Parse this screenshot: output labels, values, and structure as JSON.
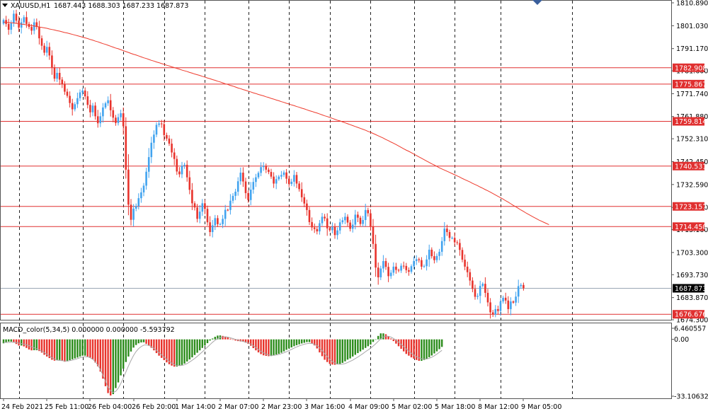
{
  "header": {
    "symbol": "XAUUSD,H1",
    "ohlc": "1687.443 1688.303 1687.233 1687.873"
  },
  "macd_header": "MACD_color(5,34,5) 0.000000 0.000000 -5.593792",
  "colors": {
    "bull": "#41a3ef",
    "bear": "#e8332c",
    "ma": "#ee3b2d",
    "hline": "#e03030",
    "macd_pos": "#2b8c1b",
    "macd_neg": "#e8332c",
    "signal": "#a8a8a8",
    "bid_line": "#9aa6b4",
    "bid_tag": "#000000",
    "hline_tag": "#e03030"
  },
  "chart_data": [
    {
      "type": "candlestick",
      "ylim": [
        1674.3,
        1810.89
      ],
      "y_ticks": [
        "1810.890",
        "1801.030",
        "1791.170",
        "1781.600",
        "1771.740",
        "1761.880",
        "1752.310",
        "1742.450",
        "1732.590",
        "1722.730",
        "1713.160",
        "1703.300",
        "1693.730",
        "1683.870",
        "1674.300"
      ],
      "x_labels": [
        "24 Feb 2021",
        "25 Feb 11:00",
        "26 Feb 04:00",
        "26 Feb 20:00",
        "1 Mar 14:00",
        "2 Mar 07:00",
        "2 Mar 23:00",
        "3 Mar 16:00",
        "4 Mar 09:00",
        "5 Mar 02:00",
        "5 Mar 18:00",
        "8 Mar 12:00",
        "9 Mar 05:00"
      ],
      "x_label_index": [
        0,
        17,
        34,
        51,
        68,
        85,
        102,
        119,
        136,
        153,
        170,
        187,
        204
      ],
      "vgrid_index": [
        6,
        31,
        47,
        63,
        79,
        96,
        112,
        128,
        144,
        161,
        177,
        195,
        223
      ],
      "closes": [
        1803.5,
        1801.8,
        1799.3,
        1802.1,
        1806.2,
        1803.2,
        1800.2,
        1802.5,
        1804.7,
        1801.8,
        1800.5,
        1798.9,
        1802.5,
        1800.5,
        1795.6,
        1792.4,
        1789.4,
        1791.9,
        1788.2,
        1783.1,
        1778.2,
        1780.7,
        1777.8,
        1775.8,
        1772.6,
        1770.8,
        1767.7,
        1765.0,
        1767.2,
        1769.8,
        1772.3,
        1773.1,
        1770.6,
        1766.9,
        1763.7,
        1766.6,
        1762.0,
        1759.0,
        1762.0,
        1765.8,
        1767.6,
        1768.9,
        1764.6,
        1761.4,
        1759.1,
        1761.6,
        1763.3,
        1757.7,
        1739.0,
        1723.9,
        1717.4,
        1722.2,
        1723.3,
        1726.7,
        1729.2,
        1732.1,
        1738.1,
        1744.4,
        1750.6,
        1754.1,
        1758.3,
        1758.9,
        1758.6,
        1753.9,
        1752.4,
        1750.2,
        1746.4,
        1743.6,
        1738.2,
        1737.0,
        1740.7,
        1741.1,
        1735.7,
        1730.3,
        1724.5,
        1722.7,
        1717.8,
        1720.9,
        1724.5,
        1722.1,
        1716.3,
        1712.1,
        1715.0,
        1718.1,
        1715.5,
        1715.5,
        1717.8,
        1721.7,
        1721.6,
        1725.6,
        1727.7,
        1729.5,
        1734.0,
        1737.7,
        1733.9,
        1728.9,
        1725.9,
        1730.4,
        1733.7,
        1735.7,
        1737.6,
        1740.1,
        1740.6,
        1739.0,
        1738.0,
        1736.0,
        1733.0,
        1734.9,
        1736.0,
        1736.7,
        1737.8,
        1735.1,
        1732.8,
        1733.8,
        1736.7,
        1733.0,
        1730.6,
        1727.1,
        1724.4,
        1721.6,
        1716.4,
        1714.1,
        1713.4,
        1712.4,
        1715.9,
        1718.7,
        1718.0,
        1713.7,
        1712.9,
        1714.3,
        1710.8,
        1712.8,
        1716.3,
        1717.2,
        1718.7,
        1716.2,
        1713.5,
        1715.3,
        1719.6,
        1718.3,
        1715.6,
        1717.3,
        1721.6,
        1720.2,
        1714.5,
        1707.0,
        1696.8,
        1692.6,
        1696.4,
        1699.6,
        1697.1,
        1693.1,
        1694.6,
        1697.2,
        1695.8,
        1695.5,
        1697.6,
        1697.5,
        1695.7,
        1695.0,
        1697.4,
        1699.6,
        1700.4,
        1700.0,
        1697.2,
        1697.4,
        1700.3,
        1704.5,
        1701.7,
        1700.0,
        1701.8,
        1703.6,
        1708.2,
        1713.6,
        1712.1,
        1709.6,
        1709.6,
        1707.7,
        1707.4,
        1704.4,
        1700.2,
        1697.2,
        1694.8,
        1691.2,
        1687.6,
        1684.2,
        1684.6,
        1688.9,
        1689.8,
        1685.9,
        1681.8,
        1677.5,
        1676.6,
        1678.9,
        1678.1,
        1682.2,
        1683.8,
        1682.6,
        1678.9,
        1682.2,
        1681.7,
        1684.3,
        1688.8,
        1689.3,
        1687.9
      ]
    },
    {
      "type": "line",
      "name": "moving-average",
      "values": [
        1802.6,
        1802.5,
        1802.4,
        1802.3,
        1802.2,
        1802.0,
        1801.9,
        1801.7,
        1801.6,
        1801.4,
        1801.2,
        1801.1,
        1800.9,
        1800.7,
        1800.5,
        1800.3,
        1800.1,
        1799.9,
        1799.6,
        1799.4,
        1799.2,
        1798.9,
        1798.7,
        1798.4,
        1798.1,
        1797.9,
        1797.6,
        1797.3,
        1797.0,
        1796.7,
        1796.4,
        1796.1,
        1795.8,
        1795.5,
        1795.1,
        1794.8,
        1794.4,
        1794.1,
        1793.7,
        1793.3,
        1793.0,
        1792.6,
        1792.2,
        1791.8,
        1791.4,
        1791.1,
        1790.7,
        1790.3,
        1789.9,
        1789.5,
        1789.1,
        1788.7,
        1788.4,
        1788.0,
        1787.6,
        1787.2,
        1786.9,
        1786.5,
        1786.1,
        1785.8,
        1785.4,
        1785.1,
        1784.7,
        1784.4,
        1784.0,
        1783.7,
        1783.3,
        1783.0,
        1782.6,
        1782.3,
        1781.9,
        1781.6,
        1781.3,
        1780.9,
        1780.6,
        1780.2,
        1779.9,
        1779.6,
        1779.2,
        1778.9,
        1778.5,
        1778.2,
        1777.8,
        1777.5,
        1777.1,
        1776.8,
        1776.4,
        1776.0,
        1775.7,
        1775.3,
        1775.0,
        1774.6,
        1774.2,
        1773.9,
        1773.5,
        1773.2,
        1772.8,
        1772.5,
        1772.1,
        1771.8,
        1771.4,
        1771.1,
        1770.8,
        1770.4,
        1770.1,
        1769.7,
        1769.4,
        1769.0,
        1768.7,
        1768.3,
        1768.0,
        1767.6,
        1767.3,
        1766.9,
        1766.6,
        1766.2,
        1765.9,
        1765.5,
        1765.2,
        1764.8,
        1764.4,
        1764.1,
        1763.7,
        1763.4,
        1763.0,
        1762.6,
        1762.2,
        1761.9,
        1761.5,
        1761.1,
        1760.7,
        1760.3,
        1760.0,
        1759.6,
        1759.2,
        1758.8,
        1758.4,
        1758.0,
        1757.6,
        1757.2,
        1756.8,
        1756.4,
        1756.0,
        1755.5,
        1755.1,
        1754.6,
        1754.1,
        1753.6,
        1753.1,
        1752.6,
        1752.0,
        1751.5,
        1750.9,
        1750.4,
        1749.8,
        1749.2,
        1748.6,
        1748.0,
        1747.4,
        1746.9,
        1746.3,
        1745.7,
        1745.1,
        1744.5,
        1743.9,
        1743.3,
        1742.7,
        1742.1,
        1741.5,
        1741.0,
        1740.4,
        1739.8,
        1739.3,
        1738.8,
        1738.3,
        1737.8,
        1737.3,
        1736.8,
        1736.3,
        1735.8,
        1735.2,
        1734.7,
        1734.2,
        1733.7,
        1733.1,
        1732.6,
        1732.1,
        1731.5,
        1731.0,
        1730.4,
        1729.9,
        1729.3,
        1728.7,
        1728.1,
        1727.5,
        1726.9,
        1726.3,
        1725.6,
        1725.0,
        1724.3,
        1723.6,
        1723.0,
        1722.3,
        1721.6,
        1721.0,
        1720.3,
        1719.7,
        1719.1,
        1718.5,
        1717.9,
        1717.3,
        1716.8,
        1716.3,
        1715.8,
        1715.3
      ]
    },
    {
      "type": "hlines",
      "levels": [
        "1782.908",
        "1775.867",
        "1759.814",
        "1740.531",
        "1723.157",
        "1714.450",
        "1676.676"
      ],
      "current_price": "1687.873"
    },
    {
      "type": "bar",
      "name": "MACD_color(5,34,5)",
      "ylim": [
        -33.106329,
        6.460557
      ],
      "y_ticks": [
        "6.460557",
        "0.00",
        "-33.106329"
      ],
      "values": [
        -2.3,
        -1.8,
        -1.3,
        -1.3,
        -1.8,
        -2.7,
        -3.6,
        -3.6,
        -4.1,
        -5.0,
        -5.9,
        -6.4,
        -6.3,
        -6.3,
        -6.8,
        -7.7,
        -9.0,
        -10.0,
        -10.9,
        -11.9,
        -12.4,
        -12.2,
        -12.0,
        -12.5,
        -13.0,
        -12.8,
        -12.1,
        -11.6,
        -11.1,
        -10.6,
        -10.0,
        -9.5,
        -9.5,
        -10.0,
        -10.6,
        -11.6,
        -13.5,
        -15.7,
        -18.8,
        -22.9,
        -27.3,
        -31.3,
        -32.7,
        -31.9,
        -28.4,
        -25.1,
        -21.0,
        -17.1,
        -13.2,
        -10.0,
        -7.1,
        -4.8,
        -3.3,
        -2.3,
        -1.8,
        -1.7,
        -2.6,
        -3.7,
        -4.9,
        -6.4,
        -8.0,
        -9.5,
        -10.8,
        -12.1,
        -13.4,
        -14.5,
        -15.3,
        -15.9,
        -15.8,
        -15.4,
        -14.9,
        -14.1,
        -12.9,
        -11.7,
        -10.5,
        -9.1,
        -7.8,
        -6.4,
        -5.0,
        -3.6,
        -2.2,
        -0.7,
        0.5,
        1.5,
        2.2,
        2.3,
        2.0,
        1.6,
        1.1,
        0.4,
        -0.1,
        -0.7,
        -1.0,
        -1.2,
        -1.4,
        -1.9,
        -2.6,
        -3.7,
        -5.1,
        -6.4,
        -7.6,
        -8.6,
        -9.3,
        -9.6,
        -9.8,
        -9.7,
        -9.3,
        -8.8,
        -8.4,
        -7.8,
        -7.0,
        -6.1,
        -5.3,
        -4.7,
        -4.0,
        -3.4,
        -2.9,
        -2.4,
        -2.0,
        -1.6,
        -1.6,
        -2.4,
        -3.5,
        -5.3,
        -7.6,
        -9.8,
        -11.9,
        -13.2,
        -14.3,
        -14.7,
        -14.8,
        -14.6,
        -14.3,
        -13.7,
        -12.8,
        -11.8,
        -11.1,
        -10.0,
        -9.0,
        -8.0,
        -7.0,
        -6.0,
        -5.0,
        -4.0,
        -3.0,
        -1.5,
        0.0,
        2.0,
        3.5,
        3.5,
        3.0,
        1.8,
        0.5,
        -1.0,
        -2.5,
        -4.0,
        -5.5,
        -7.0,
        -8.5,
        -9.5,
        -10.5,
        -11.3,
        -12.0,
        -12.5,
        -12.5,
        -12.0,
        -11.3,
        -10.4,
        -9.4,
        -8.2,
        -7.0,
        -5.7,
        -4.4
      ]
    },
    {
      "type": "line",
      "name": "signal",
      "values": [
        -1.8,
        -1.8,
        -1.8,
        -1.7,
        -1.7,
        -1.9,
        -2.2,
        -2.5,
        -2.8,
        -3.2,
        -3.7,
        -4.3,
        -4.9,
        -5.5,
        -6.1,
        -6.9,
        -7.7,
        -8.7,
        -9.7,
        -10.7,
        -11.5,
        -12.1,
        -12.3,
        -12.4,
        -12.6,
        -12.6,
        -12.4,
        -12.1,
        -11.7,
        -11.2,
        -10.7,
        -10.3,
        -10.1,
        -10.2,
        -10.7,
        -11.6,
        -13.0,
        -15.0,
        -17.6,
        -20.8,
        -24.4,
        -27.7,
        -30.0,
        -30.9,
        -30.3,
        -28.5,
        -25.7,
        -22.5,
        -19.0,
        -15.5,
        -12.3,
        -9.4,
        -7.1,
        -5.4,
        -4.2,
        -3.4,
        -3.2,
        -3.5,
        -4.2,
        -5.2,
        -6.4,
        -7.7,
        -9.0,
        -10.3,
        -11.6,
        -12.8,
        -13.8,
        -14.7,
        -15.2,
        -15.3,
        -15.2,
        -14.8,
        -14.1,
        -13.2,
        -12.2,
        -11.1,
        -9.9,
        -8.6,
        -7.3,
        -5.9,
        -4.5,
        -3.1,
        -1.7,
        -0.5,
        0.4,
        1.1,
        1.4,
        1.5,
        1.3,
        0.9,
        0.5,
        -0.0,
        -0.4,
        -0.8,
        -1.2,
        -1.6,
        -2.1,
        -2.8,
        -3.7,
        -4.8,
        -5.9,
        -7.0,
        -7.9,
        -8.6,
        -9.1,
        -9.3,
        -9.3,
        -9.1,
        -8.8,
        -8.3,
        -7.8,
        -7.2,
        -6.5,
        -5.8,
        -5.1,
        -4.4,
        -3.8,
        -3.3,
        -2.8,
        -2.5,
        -2.3,
        -2.4,
        -2.9,
        -3.7,
        -5.0,
        -6.5,
        -8.3,
        -10.0,
        -11.7,
        -12.9,
        -13.8,
        -14.3,
        -14.5,
        -14.4,
        -14.1,
        -13.5,
        -12.8,
        -12.1,
        -11.2,
        -10.3,
        -9.3,
        -8.3,
        -7.2,
        -6.2,
        -5.1,
        -3.9,
        -2.6,
        -1.1,
        0.3,
        1.4,
        1.9,
        1.8,
        1.3,
        0.5,
        -0.5,
        -1.6,
        -2.9,
        -4.2,
        -5.6,
        -6.9,
        -8.1,
        -9.2,
        -10.1,
        -10.8,
        -11.3,
        -11.5,
        -11.4,
        -11.0,
        -10.4,
        -9.6,
        -8.6,
        -7.5,
        -6.4
      ]
    }
  ]
}
